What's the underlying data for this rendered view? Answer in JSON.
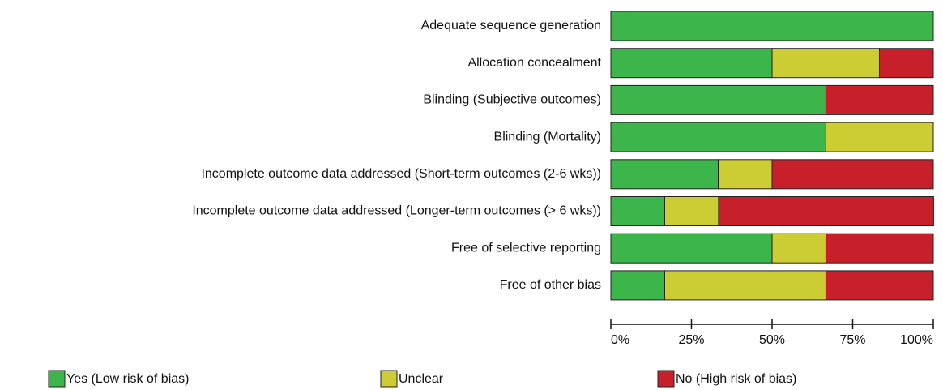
{
  "chart_data": {
    "type": "stacked_bar_horizontal",
    "categories": [
      "Adequate sequence generation",
      "Allocation concealment",
      "Blinding (Subjective outcomes)",
      "Blinding (Mortality)",
      "Incomplete outcome data addressed (Short-term outcomes (2-6 wks))",
      "Incomplete outcome data addressed (Longer-term outcomes (> 6 wks))",
      "Free of selective reporting",
      "Free of other bias"
    ],
    "series": [
      {
        "name": "Yes (Low risk of bias)",
        "color": "#3cb54a",
        "values": [
          100,
          50,
          66.7,
          66.7,
          33.3,
          16.7,
          50,
          16.7
        ]
      },
      {
        "name": "Unclear",
        "color": "#cccc33",
        "values": [
          0,
          33.3,
          0,
          33.3,
          16.7,
          16.7,
          16.7,
          50
        ]
      },
      {
        "name": "No (High risk of bias)",
        "color": "#c8202a",
        "values": [
          0,
          16.7,
          33.3,
          0,
          50,
          66.7,
          33.3,
          33.3
        ]
      }
    ],
    "xlim": [
      0,
      100
    ],
    "xticks": [
      {
        "value": 0,
        "label": "0%"
      },
      {
        "value": 25,
        "label": "25%"
      },
      {
        "value": 50,
        "label": "50%"
      },
      {
        "value": 75,
        "label": "75%"
      },
      {
        "value": 100,
        "label": "100%"
      }
    ]
  }
}
